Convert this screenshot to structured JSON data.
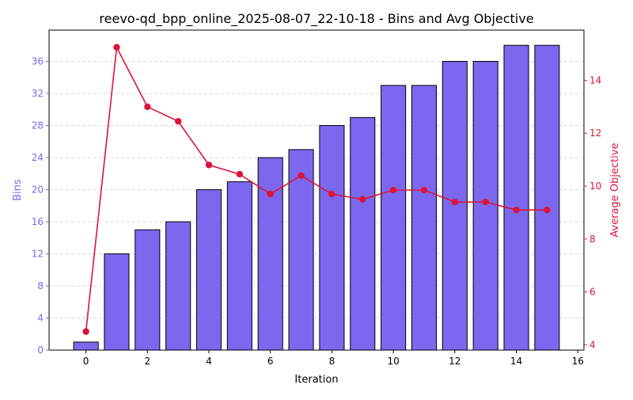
{
  "chart_data": {
    "type": "bar+line",
    "title": "reevo-qd_bpp_online_2025-08-07_22-10-18 - Bins and Avg Objective",
    "xlabel": "Iteration",
    "ylabel_left": "Bins",
    "ylabel_right": "Average Objective",
    "x": [
      0,
      1,
      2,
      3,
      4,
      5,
      6,
      7,
      8,
      9,
      10,
      11,
      12,
      13,
      14,
      15
    ],
    "xlim": [
      -1.2,
      16.2
    ],
    "ylim_left": [
      0,
      39.9
    ],
    "ylim_right": [
      3.8,
      15.9
    ],
    "xticks": [
      "0",
      "2",
      "4",
      "6",
      "8",
      "10",
      "12",
      "14",
      "16"
    ],
    "xtick_values": [
      0,
      2,
      4,
      6,
      8,
      10,
      12,
      14,
      16
    ],
    "yticks_left": [
      "0",
      "4",
      "8",
      "12",
      "16",
      "20",
      "24",
      "28",
      "32",
      "36"
    ],
    "ytick_values_left": [
      0,
      4,
      8,
      12,
      16,
      20,
      24,
      28,
      32,
      36
    ],
    "yticks_right": [
      "4",
      "6",
      "8",
      "10",
      "12",
      "14"
    ],
    "ytick_values_right": [
      4,
      6,
      8,
      10,
      12,
      14
    ],
    "grid": "horizontal dashed",
    "series": [
      {
        "kind": "bar",
        "axis": "left",
        "color": "#7b68ee",
        "edge": "#000000",
        "values": [
          1,
          12,
          15,
          16,
          20,
          21,
          24,
          25,
          28,
          29,
          33,
          33,
          36,
          36,
          38,
          38
        ]
      },
      {
        "kind": "line",
        "axis": "right",
        "color": "#dc143c",
        "marker": "circle",
        "values": [
          4.5,
          15.25,
          13.0,
          12.45,
          10.8,
          10.45,
          9.7,
          10.4,
          9.7,
          9.5,
          9.85,
          9.85,
          9.4,
          9.4,
          9.1,
          9.1
        ]
      }
    ],
    "colors": {
      "left_axis": "#7b68ee",
      "right_axis": "#dc143c",
      "grid": "#cccccc"
    }
  }
}
